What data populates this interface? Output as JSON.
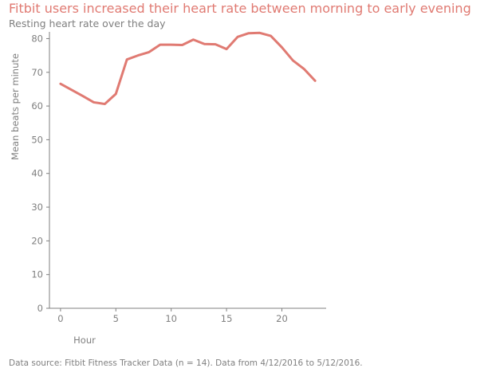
{
  "title": "Fitbit users increased their heart rate between morning to early evening",
  "subtitle": "Resting heart rate over the day",
  "caption": "Data source: Fitbit Fitness Tracker Data (n = 14). Data from 4/12/2016 to 5/12/2016.",
  "colors": {
    "line": "#e07a72",
    "text": "#7f7f7f",
    "axis": "#7f7f7f"
  },
  "chart_data": {
    "type": "line",
    "title": "Fitbit users increased their heart rate between morning to early evening",
    "subtitle": "Resting heart rate over the day",
    "xlabel": "Hour",
    "ylabel": "Mean beats per minute",
    "xlim": [
      -1,
      24
    ],
    "ylim": [
      0,
      82
    ],
    "xticks": [
      0,
      5,
      10,
      15,
      20
    ],
    "yticks": [
      0,
      10,
      20,
      30,
      40,
      50,
      60,
      70,
      80
    ],
    "grid": false,
    "legend": "none",
    "series": [
      {
        "x": [
          0,
          1,
          2,
          3,
          4,
          5,
          6,
          7,
          8,
          9,
          10,
          11,
          12,
          13,
          14,
          15,
          16,
          17,
          18,
          19,
          20,
          21,
          22,
          23
        ],
        "values": [
          66.6,
          64.8,
          63.0,
          61.1,
          60.6,
          63.6,
          73.8,
          75.0,
          76.0,
          78.2,
          78.2,
          78.1,
          79.7,
          78.4,
          78.3,
          76.9,
          80.5,
          81.6,
          81.7,
          80.8,
          77.4,
          73.5,
          71.0,
          67.5
        ]
      }
    ]
  }
}
